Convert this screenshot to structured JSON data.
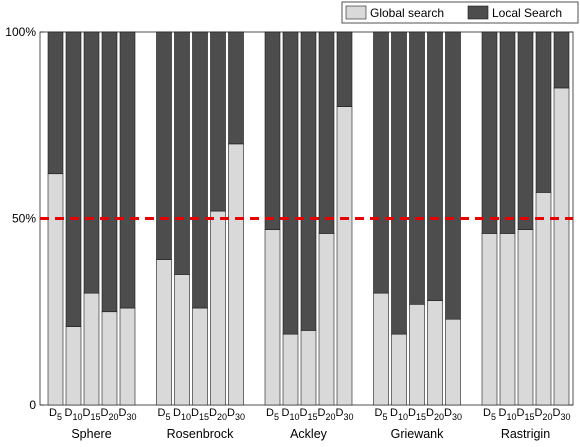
{
  "chart_data": {
    "type": "bar",
    "stacked": true,
    "groups": [
      "Sphere",
      "Rosenbrock",
      "Ackley",
      "Griewank",
      "Rastrigin"
    ],
    "dimensions": [
      {
        "base": "D",
        "sub": "5"
      },
      {
        "base": "D",
        "sub": "10"
      },
      {
        "base": "D",
        "sub": "15"
      },
      {
        "base": "D",
        "sub": "20"
      },
      {
        "base": "D",
        "sub": "30"
      }
    ],
    "series": [
      {
        "name": "Global search",
        "color": "#d9d9d9",
        "values": [
          [
            62,
            21,
            30,
            25,
            26
          ],
          [
            39,
            35,
            26,
            52,
            70
          ],
          [
            47,
            19,
            20,
            46,
            80
          ],
          [
            30,
            19,
            27,
            28,
            23
          ],
          [
            46,
            46,
            47,
            57,
            85
          ]
        ]
      },
      {
        "name": "Local Search",
        "color": "#4d4d4d",
        "values": [
          [
            38,
            79,
            70,
            75,
            74
          ],
          [
            61,
            65,
            74,
            48,
            30
          ],
          [
            53,
            81,
            80,
            54,
            20
          ],
          [
            70,
            81,
            73,
            72,
            77
          ],
          [
            54,
            54,
            53,
            43,
            15
          ]
        ]
      }
    ],
    "y_ticks": [
      "0",
      "50%",
      "100%"
    ],
    "y_tick_values": [
      0,
      50,
      100
    ],
    "ylim": [
      0,
      100
    ],
    "reference_line": {
      "value": 50,
      "color": "#e60000",
      "style": "dashed"
    },
    "grid": false,
    "legend_position": "top-right",
    "orientation": "horizontal"
  }
}
